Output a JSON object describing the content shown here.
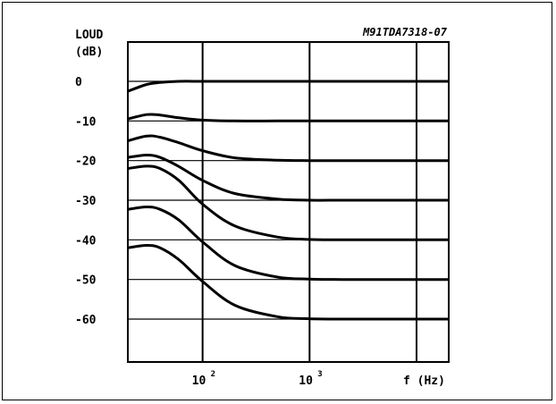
{
  "chart_data": {
    "type": "line",
    "title": "",
    "code_label": "M91TDA7318-07",
    "ylabel_line1": "LOUD",
    "ylabel_line2": "(dB)",
    "xlabel": "f (Hz)",
    "x_scale": "log",
    "xlim": [
      20,
      20000
    ],
    "ylim": [
      -70,
      0
    ],
    "y_ticks": [
      0,
      -10,
      -20,
      -30,
      -40,
      -50,
      -60
    ],
    "y_tick_labels": [
      "0",
      "-10",
      "-20",
      "-30",
      "-40",
      "-50",
      "-60"
    ],
    "x_ticks": [
      100,
      1000
    ],
    "x_tick_labels": [
      {
        "base": "10",
        "exp": "2"
      },
      {
        "base": "10",
        "exp": "3"
      }
    ],
    "x_vertical_gridlines": [
      100,
      1000,
      10000
    ],
    "grid": true,
    "series": [
      {
        "x": [
          20,
          30,
          40,
          60,
          100,
          200,
          500,
          1000,
          2000,
          5000,
          20000
        ],
        "y": [
          -2.5,
          -0.8,
          -0.3,
          0,
          0,
          0,
          0,
          0,
          0,
          0,
          0
        ]
      },
      {
        "x": [
          20,
          30,
          40,
          60,
          100,
          200,
          500,
          1000,
          2000,
          5000,
          20000
        ],
        "y": [
          -9.5,
          -8.4,
          -8.5,
          -9.2,
          -9.8,
          -10,
          -10,
          -10,
          -10,
          -10,
          -10
        ]
      },
      {
        "x": [
          20,
          30,
          40,
          60,
          100,
          200,
          500,
          1000,
          2000,
          5000,
          20000
        ],
        "y": [
          -15,
          -13.8,
          -14.1,
          -15.5,
          -17.5,
          -19.3,
          -19.9,
          -20,
          -20,
          -20,
          -20
        ]
      },
      {
        "x": [
          20,
          30,
          40,
          60,
          100,
          200,
          500,
          1000,
          2000,
          5000,
          20000
        ],
        "y": [
          -19.2,
          -18.6,
          -19.2,
          -21.5,
          -25,
          -28.3,
          -29.7,
          -30,
          -30,
          -30,
          -30
        ]
      },
      {
        "x": [
          20,
          30,
          40,
          60,
          100,
          200,
          500,
          1000,
          2000,
          5000,
          20000
        ],
        "y": [
          -22,
          -21.4,
          -22,
          -25,
          -31,
          -36.5,
          -39.3,
          -39.9,
          -40,
          -40,
          -40
        ]
      },
      {
        "x": [
          20,
          30,
          40,
          60,
          100,
          200,
          500,
          1000,
          2000,
          5000,
          20000
        ],
        "y": [
          -32.3,
          -31.7,
          -32.3,
          -35,
          -40.5,
          -46.5,
          -49.4,
          -49.9,
          -50,
          -50,
          -50
        ]
      },
      {
        "x": [
          20,
          30,
          40,
          60,
          100,
          200,
          500,
          1000,
          2000,
          5000,
          20000
        ],
        "y": [
          -42,
          -41.4,
          -42,
          -45,
          -50.5,
          -56.5,
          -59.4,
          -59.9,
          -60,
          -60,
          -60
        ]
      }
    ]
  }
}
